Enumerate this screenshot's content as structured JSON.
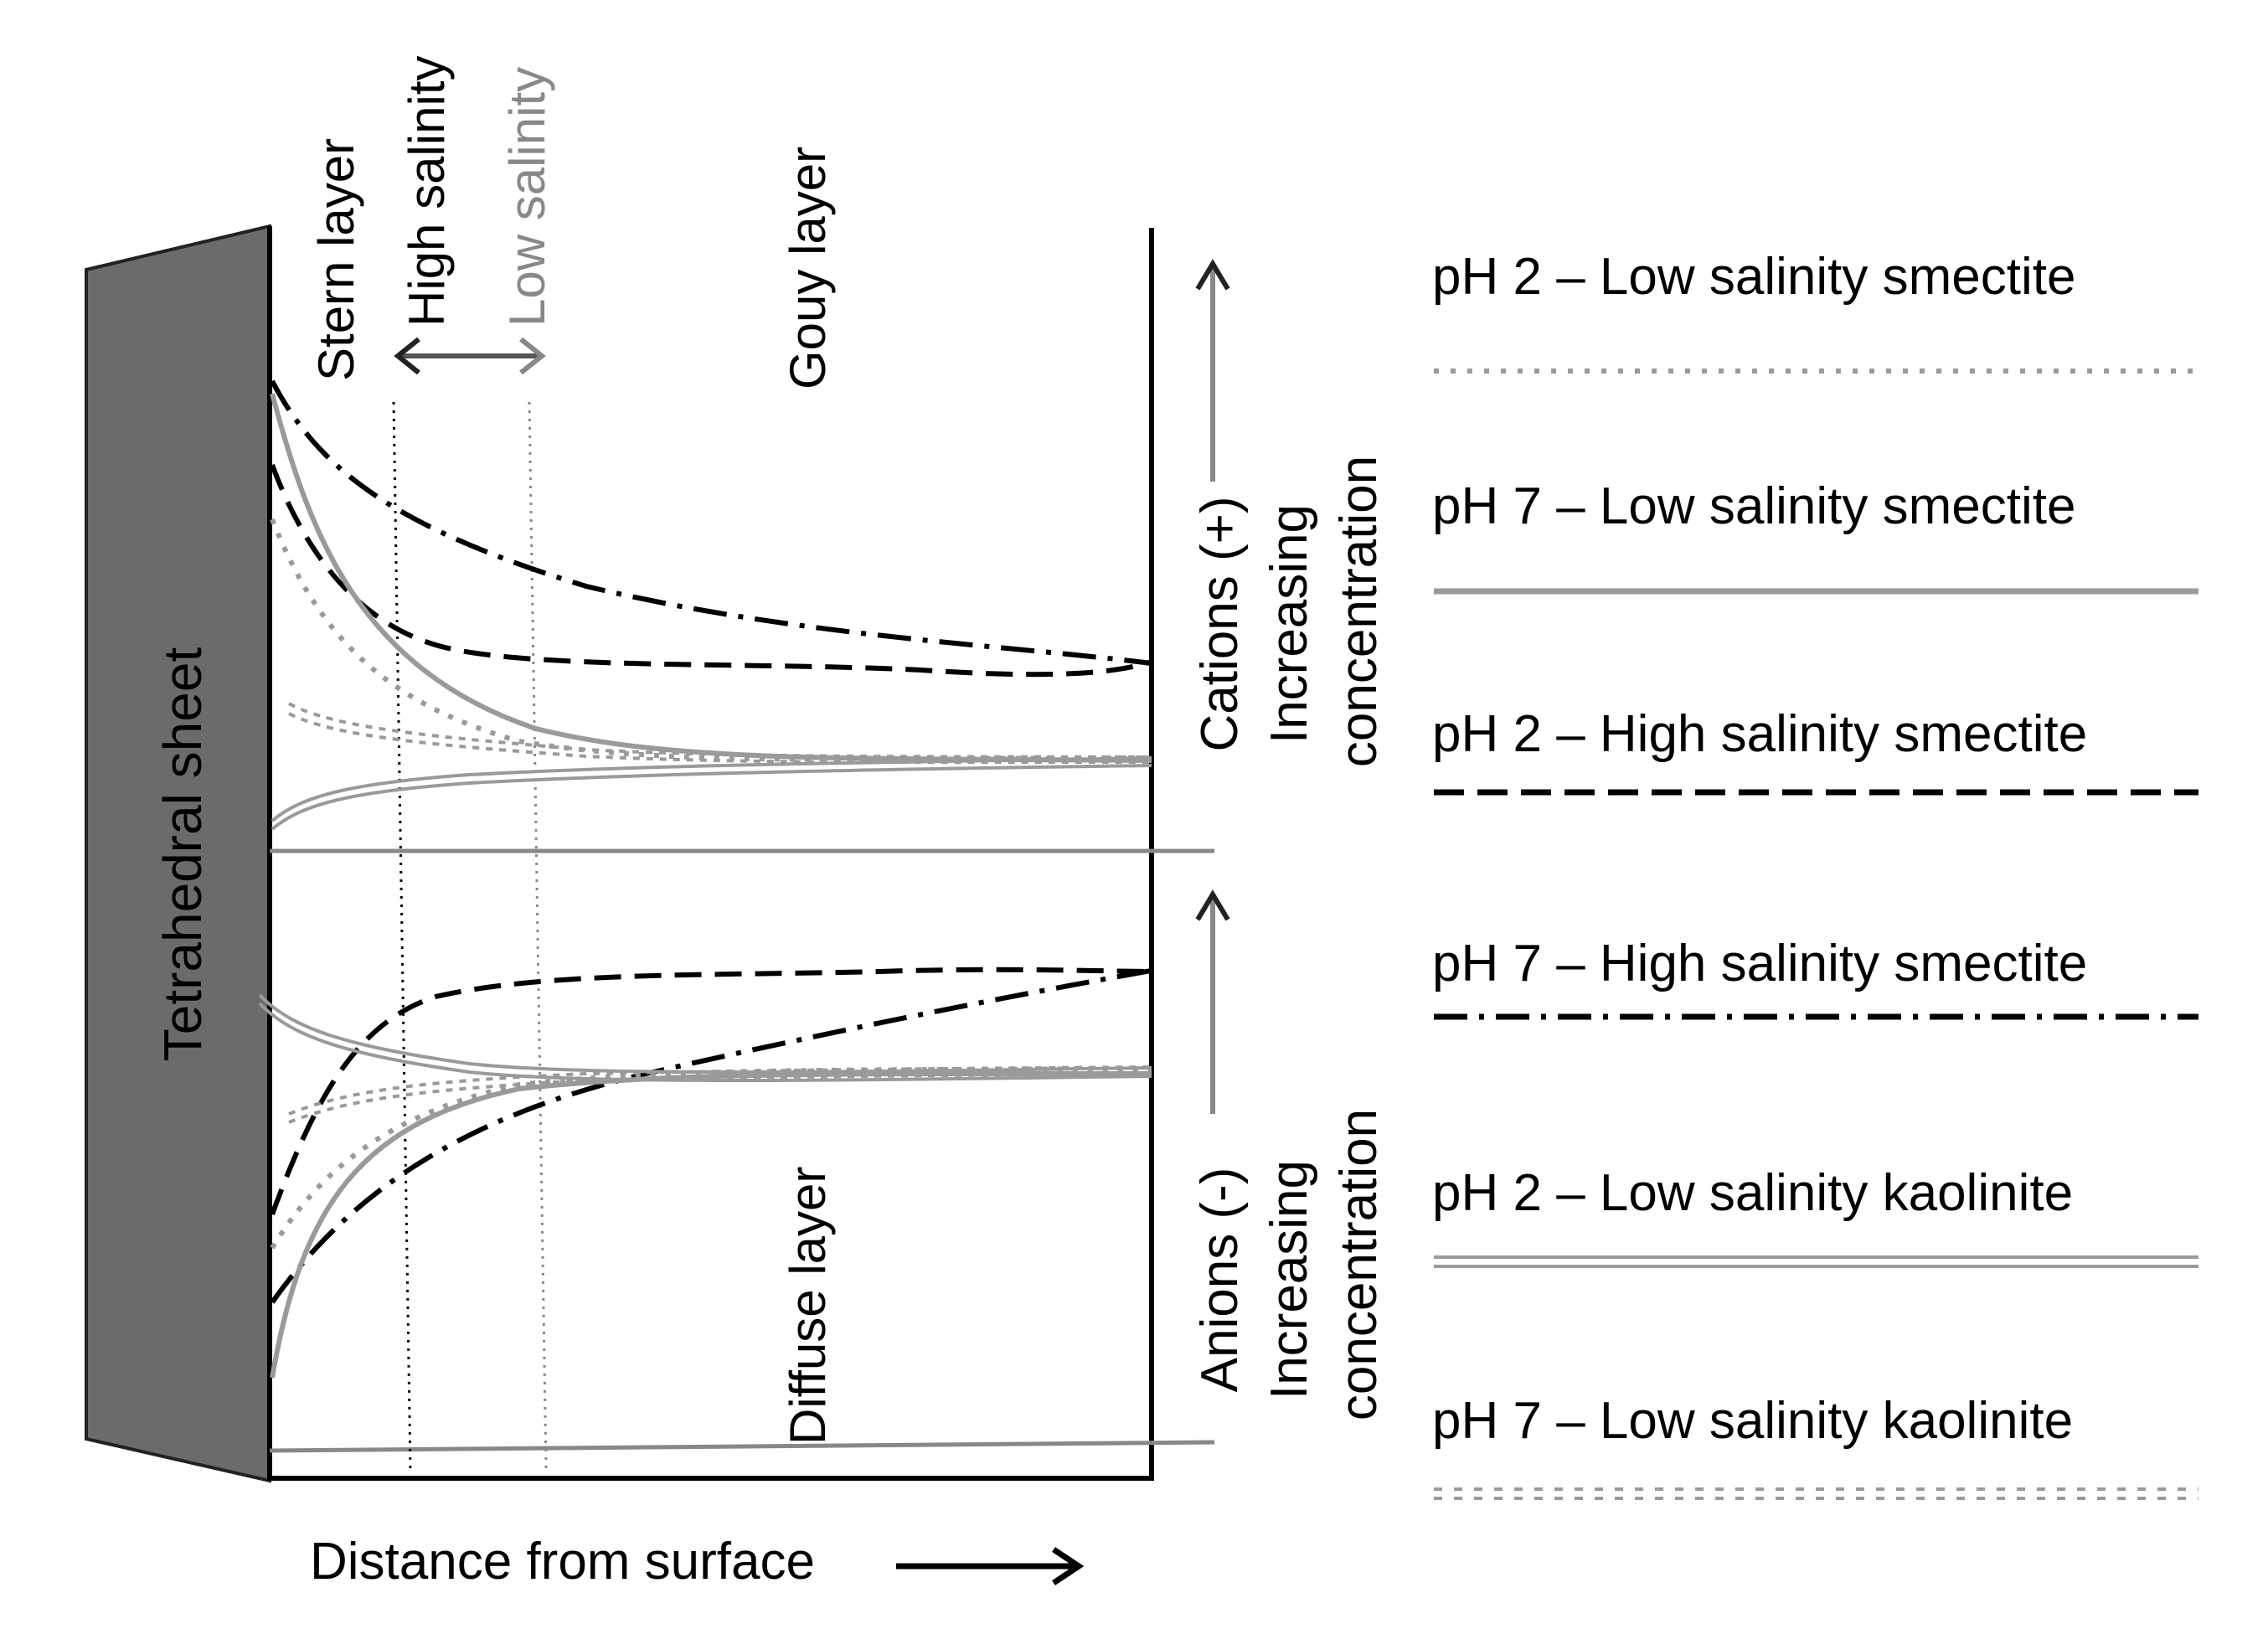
{
  "labels": {
    "tetrahedral_sheet": "Tetrahedral sheet",
    "stern_layer": "Stern layer",
    "high_salinity": "High salinity",
    "low_salinity": "Low salinity",
    "gouy_layer": "Gouy layer",
    "diffuse_layer": "Diffuse layer",
    "cations_title": "Cations (+)",
    "cations_sub1": "Increasing",
    "cations_sub2": "concentration",
    "anions_title": "Anions (-)",
    "anions_sub1": "Increasing",
    "anions_sub2": "concentration",
    "x_axis": "Distance from surface"
  },
  "legend": [
    {
      "text": "pH 2 – Low salinity smectite",
      "style": "dotted-gray"
    },
    {
      "text": "pH 7 – Low salinity smectite",
      "style": "solid-gray"
    },
    {
      "text": "pH 2 – High salinity smectite",
      "style": "dashed-black"
    },
    {
      "text": "pH 7 – High salinity smectite",
      "style": "dashdot-black"
    },
    {
      "text": "pH 2 – Low salinity kaolinite",
      "style": "double-gray"
    },
    {
      "text": "pH 7 – Low salinity kaolinite",
      "style": "double-dotted-gray"
    }
  ],
  "colors": {
    "sheet_fill": "#6b6b6b",
    "gray_curve": "#9a9a9a",
    "black_curve": "#000000",
    "axis": "#000000"
  }
}
